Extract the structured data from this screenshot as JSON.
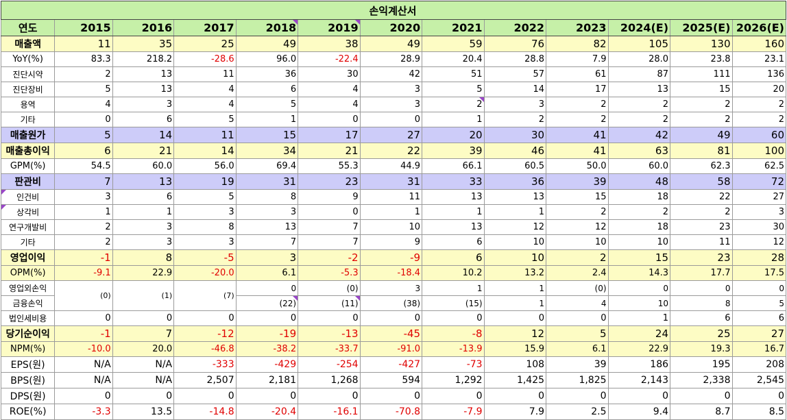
{
  "title": "손익계산서",
  "header": {
    "label": "연도",
    "years": [
      "2015",
      "2016",
      "2017",
      "2018",
      "2019",
      "2020",
      "2021",
      "2022",
      "2023",
      "2024(E)",
      "2025(E)",
      "2026(E)"
    ]
  },
  "rows": [
    {
      "label": "매출액",
      "values": [
        "11",
        "35",
        "25",
        "49",
        "38",
        "49",
        "59",
        "76",
        "82",
        "105",
        "130",
        "160"
      ]
    },
    {
      "label": "YoY(%)",
      "values": [
        "83.3",
        "218.2",
        "-28.6",
        "96.0",
        "-22.4",
        "28.9",
        "20.4",
        "28.8",
        "7.9",
        "28.0",
        "23.8",
        "23.1"
      ]
    },
    {
      "label": "진단시약",
      "values": [
        "2",
        "13",
        "11",
        "36",
        "30",
        "42",
        "51",
        "57",
        "61",
        "87",
        "111",
        "136"
      ]
    },
    {
      "label": "진단장비",
      "values": [
        "5",
        "13",
        "4",
        "6",
        "4",
        "3",
        "5",
        "14",
        "17",
        "13",
        "15",
        "20"
      ]
    },
    {
      "label": "용역",
      "values": [
        "4",
        "3",
        "4",
        "5",
        "4",
        "3",
        "2",
        "3",
        "2",
        "2",
        "2",
        "2"
      ]
    },
    {
      "label": "기타",
      "values": [
        "0",
        "6",
        "5",
        "1",
        "0",
        "0",
        "1",
        "2",
        "2",
        "2",
        "2",
        "2"
      ]
    },
    {
      "label": "매출원가",
      "values": [
        "5",
        "14",
        "11",
        "15",
        "17",
        "27",
        "20",
        "30",
        "41",
        "42",
        "49",
        "60"
      ]
    },
    {
      "label": "매출총이익",
      "values": [
        "6",
        "21",
        "14",
        "34",
        "21",
        "22",
        "39",
        "46",
        "41",
        "63",
        "81",
        "100"
      ]
    },
    {
      "label": "GPM(%)",
      "values": [
        "54.5",
        "60.0",
        "56.0",
        "69.4",
        "55.3",
        "44.9",
        "66.1",
        "60.5",
        "50.0",
        "60.0",
        "62.3",
        "62.5"
      ]
    },
    {
      "label": "판관비",
      "values": [
        "7",
        "13",
        "19",
        "31",
        "23",
        "31",
        "33",
        "36",
        "39",
        "48",
        "58",
        "72"
      ]
    },
    {
      "label": "인건비",
      "values": [
        "3",
        "6",
        "5",
        "8",
        "9",
        "11",
        "13",
        "13",
        "15",
        "18",
        "22",
        "27"
      ]
    },
    {
      "label": "상각비",
      "values": [
        "1",
        "1",
        "3",
        "3",
        "0",
        "1",
        "1",
        "1",
        "2",
        "2",
        "2",
        "3"
      ]
    },
    {
      "label": "연구개발비",
      "values": [
        "2",
        "3",
        "8",
        "13",
        "7",
        "10",
        "13",
        "12",
        "12",
        "18",
        "23",
        "30"
      ]
    },
    {
      "label": "기타",
      "values": [
        "2",
        "3",
        "3",
        "7",
        "7",
        "9",
        "6",
        "10",
        "10",
        "10",
        "11",
        "12"
      ]
    },
    {
      "label": "영업이익",
      "values": [
        "-1",
        "8",
        "-5",
        "3",
        "-2",
        "-9",
        "6",
        "10",
        "2",
        "15",
        "23",
        "28"
      ]
    },
    {
      "label": "OPM(%)",
      "values": [
        "-9.1",
        "22.9",
        "-20.0",
        "6.1",
        "-5.3",
        "-18.4",
        "10.2",
        "13.2",
        "2.4",
        "14.3",
        "17.7",
        "17.5"
      ]
    },
    {
      "label": "영업외손익",
      "values": [
        "",
        "",
        "",
        "0",
        "(0)",
        "3",
        "1",
        "1",
        "(0)",
        "0",
        "0",
        "0"
      ]
    },
    {
      "label": "금융손익",
      "values": [
        "",
        "",
        "",
        "(22)",
        "(11)",
        "(38)",
        "(15)",
        "1",
        "4",
        "10",
        "8",
        "5"
      ]
    },
    {
      "label": "법인세비용",
      "values": [
        "0",
        "0",
        "0",
        "0",
        "0",
        "0",
        "0",
        "0",
        "0",
        "1",
        "6",
        "6"
      ]
    },
    {
      "label": "당기순이익",
      "values": [
        "-1",
        "7",
        "-12",
        "-19",
        "-13",
        "-45",
        "-8",
        "12",
        "5",
        "24",
        "25",
        "27"
      ]
    },
    {
      "label": "NPM(%)",
      "values": [
        "-10.0",
        "20.0",
        "-46.8",
        "-38.2",
        "-33.7",
        "-91.0",
        "-13.9",
        "15.9",
        "6.1",
        "22.9",
        "19.3",
        "16.7"
      ]
    },
    {
      "label": "EPS(원)",
      "values": [
        "N/A",
        "N/A",
        "-333",
        "-429",
        "-254",
        "-427",
        "-73",
        "108",
        "39",
        "186",
        "195",
        "208"
      ]
    },
    {
      "label": "BPS(원)",
      "values": [
        "N/A",
        "N/A",
        "2,507",
        "2,181",
        "1,268",
        "594",
        "1,292",
        "1,425",
        "1,825",
        "2,143",
        "2,338",
        "2,545"
      ]
    },
    {
      "label": "DPS(원)",
      "values": [
        "0",
        "0",
        "0",
        "0",
        "0",
        "0",
        "0",
        "0",
        "0",
        "0",
        "0",
        "0"
      ]
    },
    {
      "label": "ROE(%)",
      "values": [
        "-3.3",
        "13.5",
        "-14.8",
        "-20.4",
        "-16.1",
        "-70.8",
        "-7.9",
        "7.9",
        "2.5",
        "9.4",
        "8.7",
        "8.5"
      ]
    }
  ],
  "merged_cells": {
    "values": [
      "(0)",
      "(1)",
      "(7)"
    ]
  },
  "colors": {
    "header": "#c6f0a8",
    "highlight_yellow": "#fdfcc4",
    "highlight_purple": "#cdccf9",
    "negative": "#e00000",
    "comment_marker": "#9a46c8"
  }
}
